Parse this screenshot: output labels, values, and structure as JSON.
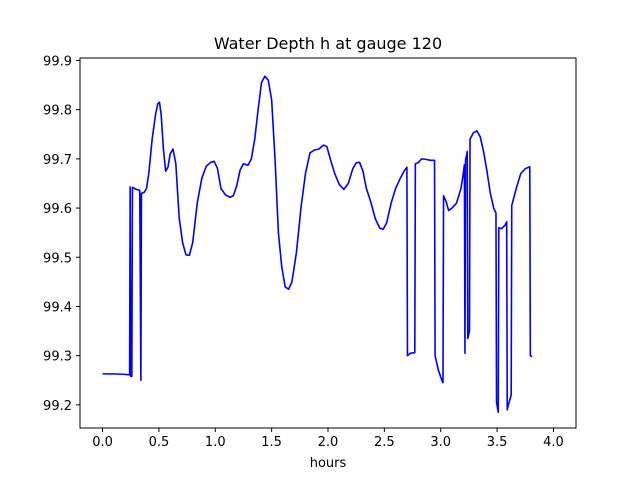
{
  "chart_data": {
    "type": "line",
    "title": "Water Depth h at gauge 120",
    "xlabel": "hours",
    "ylabel": "",
    "xlim": [
      -0.2,
      4.2
    ],
    "ylim": [
      99.153,
      99.905
    ],
    "xticks": [
      0.0,
      0.5,
      1.0,
      1.5,
      2.0,
      2.5,
      3.0,
      3.5,
      4.0
    ],
    "xtick_labels": [
      "0.0",
      "0.5",
      "1.0",
      "1.5",
      "2.0",
      "2.5",
      "3.0",
      "3.5",
      "4.0"
    ],
    "yticks": [
      99.2,
      99.3,
      99.4,
      99.5,
      99.6,
      99.7,
      99.8,
      99.9
    ],
    "ytick_labels": [
      "99.2",
      "99.3",
      "99.4",
      "99.5",
      "99.6",
      "99.7",
      "99.8",
      "99.9"
    ],
    "grid": false,
    "series": [
      {
        "color": "#0000ff",
        "points": [
          [
            0.0,
            99.263
          ],
          [
            0.1,
            99.263
          ],
          [
            0.2,
            99.262
          ],
          [
            0.24,
            99.261
          ],
          [
            0.245,
            99.643
          ],
          [
            0.25,
            99.258
          ],
          [
            0.26,
            99.258
          ],
          [
            0.265,
            99.642
          ],
          [
            0.3,
            99.638
          ],
          [
            0.33,
            99.636
          ],
          [
            0.34,
            99.25
          ],
          [
            0.345,
            99.63
          ],
          [
            0.37,
            99.632
          ],
          [
            0.39,
            99.64
          ],
          [
            0.41,
            99.67
          ],
          [
            0.44,
            99.74
          ],
          [
            0.47,
            99.79
          ],
          [
            0.49,
            99.812
          ],
          [
            0.505,
            99.815
          ],
          [
            0.52,
            99.79
          ],
          [
            0.54,
            99.72
          ],
          [
            0.56,
            99.675
          ],
          [
            0.58,
            99.683
          ],
          [
            0.6,
            99.71
          ],
          [
            0.625,
            99.72
          ],
          [
            0.65,
            99.69
          ],
          [
            0.68,
            99.58
          ],
          [
            0.71,
            99.53
          ],
          [
            0.74,
            99.505
          ],
          [
            0.77,
            99.504
          ],
          [
            0.8,
            99.53
          ],
          [
            0.84,
            99.61
          ],
          [
            0.88,
            99.66
          ],
          [
            0.92,
            99.685
          ],
          [
            0.96,
            99.693
          ],
          [
            0.99,
            99.695
          ],
          [
            1.02,
            99.68
          ],
          [
            1.05,
            99.64
          ],
          [
            1.09,
            99.627
          ],
          [
            1.13,
            99.622
          ],
          [
            1.16,
            99.625
          ],
          [
            1.19,
            99.645
          ],
          [
            1.22,
            99.677
          ],
          [
            1.25,
            99.69
          ],
          [
            1.29,
            99.687
          ],
          [
            1.32,
            99.7
          ],
          [
            1.35,
            99.74
          ],
          [
            1.38,
            99.8
          ],
          [
            1.41,
            99.855
          ],
          [
            1.44,
            99.868
          ],
          [
            1.47,
            99.86
          ],
          [
            1.5,
            99.82
          ],
          [
            1.53,
            99.7
          ],
          [
            1.56,
            99.55
          ],
          [
            1.59,
            99.48
          ],
          [
            1.62,
            99.44
          ],
          [
            1.65,
            99.435
          ],
          [
            1.68,
            99.45
          ],
          [
            1.72,
            99.51
          ],
          [
            1.76,
            99.6
          ],
          [
            1.8,
            99.67
          ],
          [
            1.84,
            99.712
          ],
          [
            1.88,
            99.718
          ],
          [
            1.92,
            99.72
          ],
          [
            1.96,
            99.728
          ],
          [
            1.99,
            99.725
          ],
          [
            2.02,
            99.7
          ],
          [
            2.06,
            99.67
          ],
          [
            2.1,
            99.648
          ],
          [
            2.14,
            99.638
          ],
          [
            2.18,
            99.65
          ],
          [
            2.22,
            99.68
          ],
          [
            2.25,
            99.692
          ],
          [
            2.28,
            99.693
          ],
          [
            2.31,
            99.675
          ],
          [
            2.34,
            99.64
          ],
          [
            2.38,
            99.612
          ],
          [
            2.42,
            99.578
          ],
          [
            2.46,
            99.559
          ],
          [
            2.49,
            99.557
          ],
          [
            2.52,
            99.57
          ],
          [
            2.56,
            99.61
          ],
          [
            2.6,
            99.64
          ],
          [
            2.64,
            99.66
          ],
          [
            2.68,
            99.677
          ],
          [
            2.7,
            99.683
          ],
          [
            2.705,
            99.3
          ],
          [
            2.73,
            99.305
          ],
          [
            2.77,
            99.306
          ],
          [
            2.775,
            99.69
          ],
          [
            2.8,
            99.692
          ],
          [
            2.83,
            99.7
          ],
          [
            2.87,
            99.699
          ],
          [
            2.91,
            99.697
          ],
          [
            2.945,
            99.697
          ],
          [
            2.95,
            99.3
          ],
          [
            2.98,
            99.27
          ],
          [
            3.01,
            99.25
          ],
          [
            3.02,
            99.245
          ],
          [
            3.025,
            99.625
          ],
          [
            3.05,
            99.612
          ],
          [
            3.07,
            99.595
          ],
          [
            3.1,
            99.6
          ],
          [
            3.14,
            99.61
          ],
          [
            3.18,
            99.64
          ],
          [
            3.2,
            99.67
          ],
          [
            3.21,
            99.688
          ],
          [
            3.215,
            99.305
          ],
          [
            3.22,
            99.698
          ],
          [
            3.23,
            99.708
          ],
          [
            3.235,
            99.715
          ],
          [
            3.24,
            99.335
          ],
          [
            3.255,
            99.35
          ],
          [
            3.26,
            99.74
          ],
          [
            3.29,
            99.753
          ],
          [
            3.32,
            99.757
          ],
          [
            3.35,
            99.745
          ],
          [
            3.38,
            99.715
          ],
          [
            3.41,
            99.675
          ],
          [
            3.44,
            99.63
          ],
          [
            3.47,
            99.6
          ],
          [
            3.49,
            99.59
          ],
          [
            3.495,
            99.205
          ],
          [
            3.51,
            99.185
          ],
          [
            3.515,
            99.56
          ],
          [
            3.54,
            99.558
          ],
          [
            3.57,
            99.565
          ],
          [
            3.585,
            99.572
          ],
          [
            3.59,
            99.19
          ],
          [
            3.6,
            99.2
          ],
          [
            3.625,
            99.22
          ],
          [
            3.63,
            99.605
          ],
          [
            3.67,
            99.64
          ],
          [
            3.71,
            99.67
          ],
          [
            3.75,
            99.68
          ],
          [
            3.78,
            99.683
          ],
          [
            3.79,
            99.684
          ],
          [
            3.795,
            99.3
          ],
          [
            3.81,
            99.298
          ]
        ]
      }
    ]
  }
}
